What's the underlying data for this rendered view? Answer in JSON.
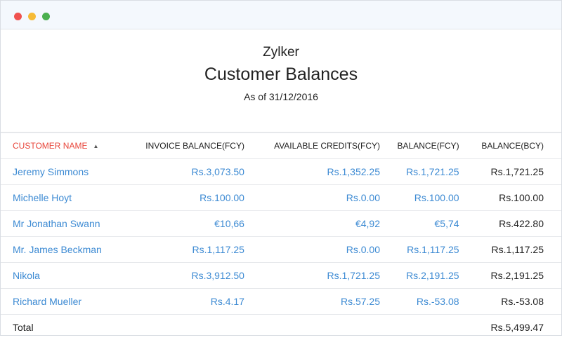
{
  "window": {
    "controls": [
      "close",
      "minimize",
      "maximize"
    ]
  },
  "report": {
    "organization": "Zylker",
    "title": "Customer Balances",
    "as_of": "As of 31/12/2016"
  },
  "table": {
    "columns": [
      "CUSTOMER NAME",
      "INVOICE BALANCE(FCY)",
      "AVAILABLE CREDITS(FCY)",
      "BALANCE(FCY)",
      "BALANCE(BCY)"
    ],
    "sort": {
      "column": "CUSTOMER NAME",
      "icon": "sort-icon"
    },
    "rows": [
      [
        "Jeremy Simmons",
        "Rs.3,073.50",
        "Rs.1,352.25",
        "Rs.1,721.25",
        "Rs.1,721.25"
      ],
      [
        "Michelle Hoyt",
        "Rs.100.00",
        "Rs.0.00",
        "Rs.100.00",
        "Rs.100.00"
      ],
      [
        "Mr Jonathan Swann",
        "€10,66",
        "€4,92",
        "€5,74",
        "Rs.422.80"
      ],
      [
        "Mr. James Beckman",
        "Rs.1,117.25",
        "Rs.0.00",
        "Rs.1,117.25",
        "Rs.1,117.25"
      ],
      [
        "Nikola",
        "Rs.3,912.50",
        "Rs.1,721.25",
        "Rs.2,191.25",
        "Rs.2,191.25"
      ],
      [
        "Richard Mueller",
        "Rs.4.17",
        "Rs.57.25",
        "Rs.-53.08",
        "Rs.-53.08"
      ]
    ],
    "total": {
      "label": "Total",
      "value": "Rs.5,499.47"
    }
  },
  "colors": {
    "link": "#3c8ad3",
    "sorted_header": "#e8463b"
  }
}
